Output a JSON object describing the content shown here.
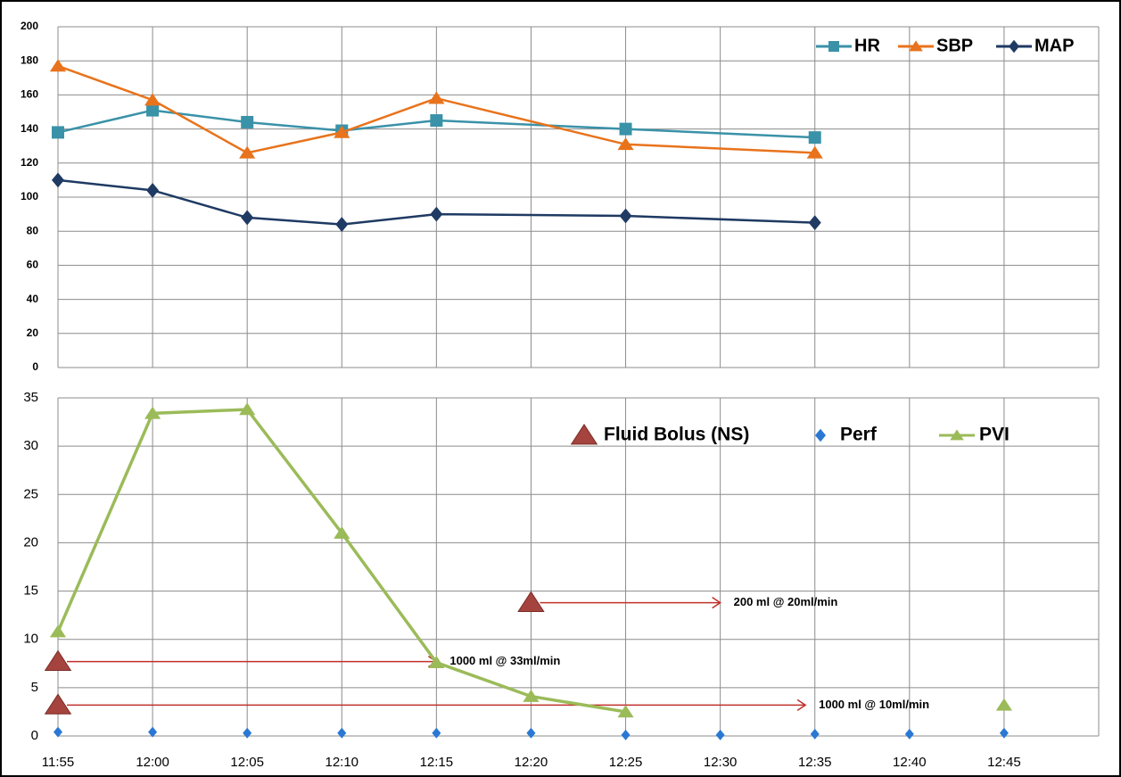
{
  "chart_data": [
    {
      "type": "line",
      "ylim": [
        0,
        200
      ],
      "yticks": [
        0,
        20,
        40,
        60,
        80,
        100,
        120,
        140,
        160,
        180,
        200
      ],
      "grid": true,
      "legend": "upper right",
      "series": [
        {
          "name": "HR",
          "color": "#3a92a8",
          "marker": "square",
          "x": [
            "11:55",
            "12:00",
            "12:05",
            "12:10",
            "12:15",
            "12:25",
            "12:35"
          ],
          "values": [
            138,
            151,
            144,
            139,
            145,
            140,
            135
          ]
        },
        {
          "name": "SBP",
          "color": "#e8731c",
          "marker": "triangle",
          "x": [
            "11:55",
            "12:00",
            "12:05",
            "12:10",
            "12:15",
            "12:25",
            "12:35"
          ],
          "values": [
            177,
            157,
            126,
            138,
            158,
            131,
            126
          ]
        },
        {
          "name": "MAP",
          "color": "#1f3a63",
          "marker": "diamond",
          "x": [
            "11:55",
            "12:00",
            "12:05",
            "12:10",
            "12:15",
            "12:25",
            "12:35"
          ],
          "values": [
            110,
            104,
            88,
            84,
            90,
            89,
            85
          ]
        }
      ]
    },
    {
      "type": "line",
      "categories": [
        "11:55",
        "12:00",
        "12:05",
        "12:10",
        "12:15",
        "12:20",
        "12:25",
        "12:30",
        "12:35",
        "12:40",
        "12:45"
      ],
      "ylim": [
        0,
        35
      ],
      "yticks": [
        0,
        5,
        10,
        15,
        20,
        25,
        30,
        35
      ],
      "grid": true,
      "legend": "upper center",
      "series": [
        {
          "name": "Fluid Bolus (NS)",
          "color": "#a5443e",
          "marker": "triangle",
          "line": false,
          "x": [
            "11:55",
            "11:55",
            "12:20"
          ],
          "values": [
            3.2,
            7.7,
            13.8
          ],
          "labels": [
            "1000 ml @ 10ml/min",
            "1000 ml @ 33ml/min",
            "200 ml @ 20ml/min"
          ]
        },
        {
          "name": "Perf",
          "color": "#2a78d4",
          "marker": "diamond",
          "line": false,
          "values": [
            0.4,
            0.4,
            0.3,
            0.3,
            0.3,
            0.3,
            0.1,
            0.1,
            0.2,
            0.2,
            0.3
          ]
        },
        {
          "name": "PVI",
          "color": "#9bbb59",
          "marker": "triangle",
          "line": true,
          "values": [
            10.8,
            33.4,
            33.8,
            21.0,
            7.6,
            4.1,
            2.5,
            null,
            null,
            null,
            3.2
          ]
        }
      ]
    }
  ]
}
